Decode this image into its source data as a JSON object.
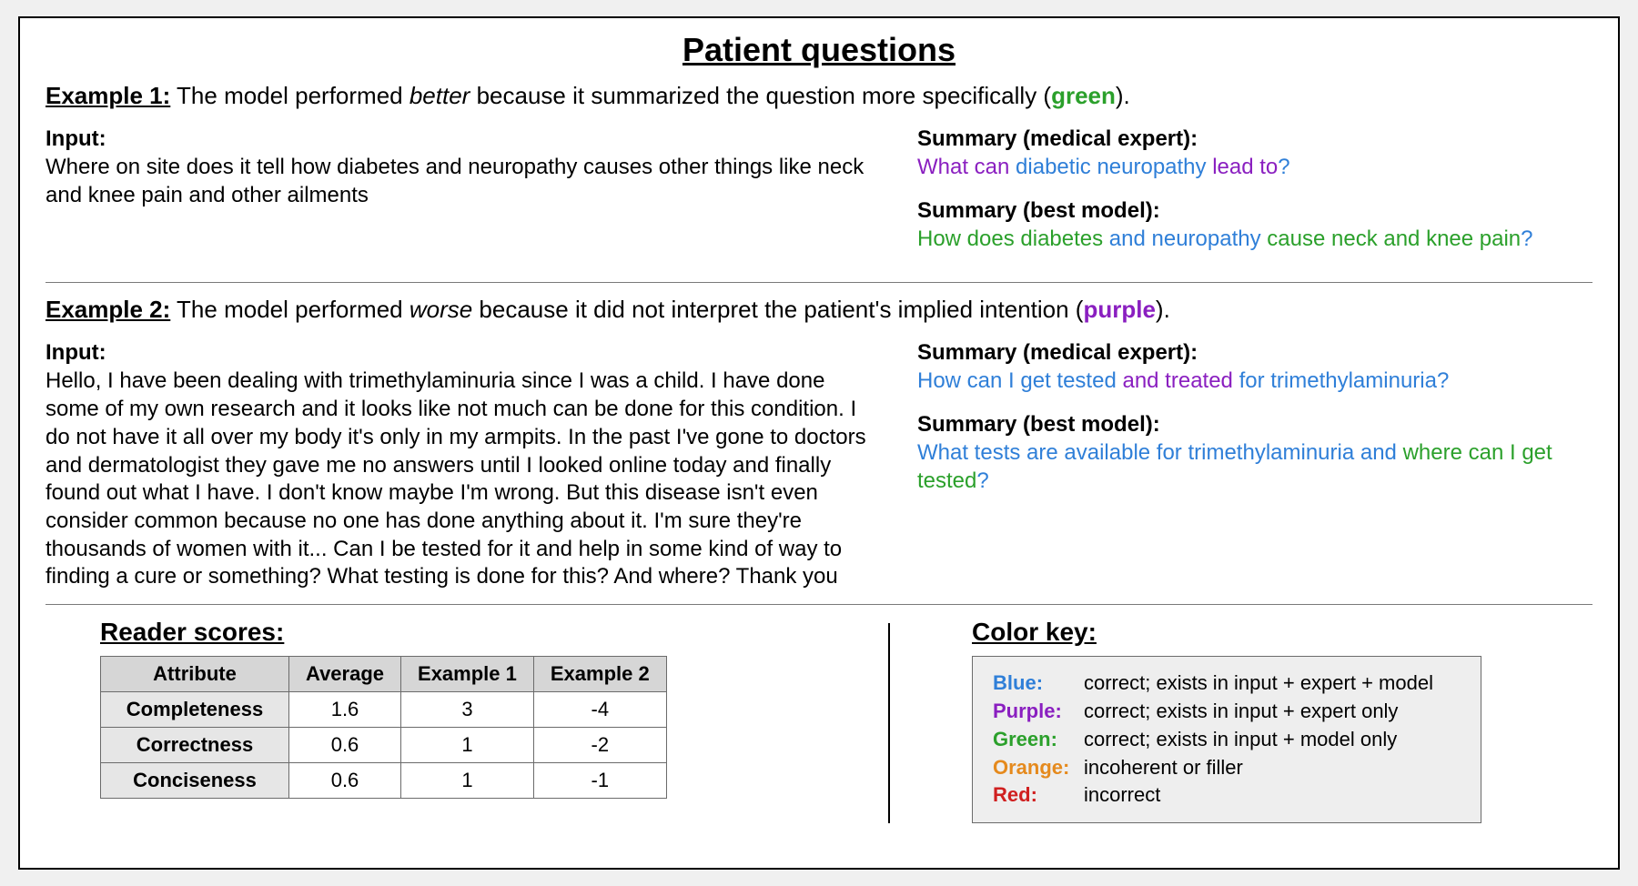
{
  "colors": {
    "blue": "#2f7fd8",
    "purple": "#8a1fc0",
    "green": "#2ba02b",
    "orange": "#e58a1d",
    "red": "#d02020",
    "panel_bg": "#ffffff",
    "page_bg": "#f0f0f0",
    "table_header_bg": "#d6d6d6",
    "table_attr_bg": "#e6e6e6",
    "keybox_bg": "#eeeeee",
    "border": "#6b6b6b"
  },
  "title": "Patient questions",
  "ex1": {
    "label": "Example 1:",
    "desc_pre": " The model performed ",
    "desc_em": "better",
    "desc_post": " because it summarized the question more specifically (",
    "desc_color_word": "green",
    "desc_end": ").",
    "input_head": "Input:",
    "input_text": "Where on site does it tell how diabetes and neuropathy causes other things like neck and knee pain and other ailments",
    "sum_expert_head": "Summary (medical expert):",
    "expert": {
      "p1": "What can ",
      "p2": "diabetic neuropathy ",
      "p3": "lead to",
      "p4": "?"
    },
    "sum_model_head": "Summary (best model):",
    "model": {
      "p1": "How does diabetes ",
      "p2": "and neuropathy ",
      "p3": "cause neck and knee pain",
      "p4": "?"
    }
  },
  "ex2": {
    "label": "Example 2:",
    "desc_pre": " The model performed ",
    "desc_em": "worse",
    "desc_post": " because it did not interpret the patient's implied intention (",
    "desc_color_word": "purple",
    "desc_end": ").",
    "input_head": "Input:",
    "input_text": "Hello, I have been dealing with trimethylaminuria since I was a child. I have done some of my own research and it looks like not much can be done for this condition. I do not have it all over my body it's only in my armpits. In the past I've gone to doctors and dermatologist they gave me no answers until I looked online today and finally found out what I have. I don't know maybe I'm wrong. But this disease isn't even consider common because no one has done anything about it. I'm sure they're thousands of women with it... Can I be tested for it and help in some kind of way to finding a cure or something?  What testing is done for this?  And where? Thank you",
    "sum_expert_head": "Summary (medical expert):",
    "expert": {
      "p1": "How can I get tested ",
      "p2": "and treated ",
      "p3": "for trimethylaminuria?"
    },
    "sum_model_head": "Summary (best model):",
    "model": {
      "p1": "What tests are available for trimethylaminuria and ",
      "p2": "where can I get tested",
      "p3": "?"
    }
  },
  "scores": {
    "title": "Reader scores:",
    "columns": [
      "Attribute",
      "Average",
      "Example 1",
      "Example 2"
    ],
    "rows": [
      [
        "Completeness",
        "1.6",
        "3",
        "-4"
      ],
      [
        "Correctness",
        "0.6",
        "1",
        "-2"
      ],
      [
        "Conciseness",
        "0.6",
        "1",
        "-1"
      ]
    ]
  },
  "key": {
    "title": "Color key:",
    "items": [
      {
        "label": "Blue",
        "class": "c-blue",
        "desc": "correct; exists in input + expert + model"
      },
      {
        "label": "Purple",
        "class": "c-purple",
        "desc": "correct; exists in input + expert only"
      },
      {
        "label": "Green",
        "class": "c-green",
        "desc": "correct; exists in input + model only"
      },
      {
        "label": "Orange",
        "class": "c-orange",
        "desc": "incoherent or filler"
      },
      {
        "label": "Red",
        "class": "c-red",
        "desc": "incorrect"
      }
    ]
  }
}
